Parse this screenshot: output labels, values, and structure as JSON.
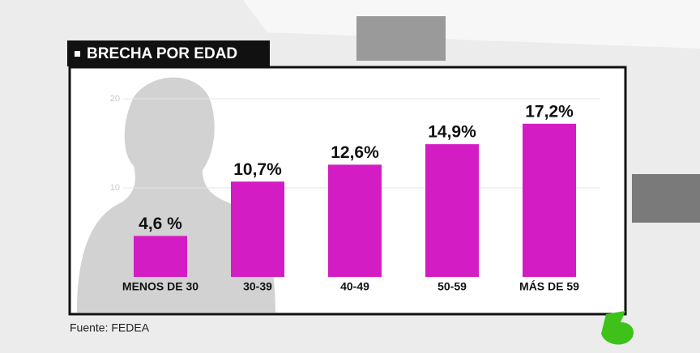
{
  "chart_data": {
    "type": "bar",
    "title": "BRECHA POR EDAD",
    "source": "Fuente: FEDEA",
    "categories": [
      "MENOS DE 30",
      "30-39",
      "40-49",
      "50-59",
      "MÁS DE 59"
    ],
    "values": [
      4.6,
      10.7,
      12.6,
      14.9,
      17.2
    ],
    "value_labels": [
      "4,6 %",
      "10,7%",
      "12,6%",
      "14,9%",
      "17,2%"
    ],
    "color": "#d41cc4",
    "ylim": [
      0,
      20
    ],
    "yticks": [
      10,
      20
    ],
    "grid": true
  }
}
